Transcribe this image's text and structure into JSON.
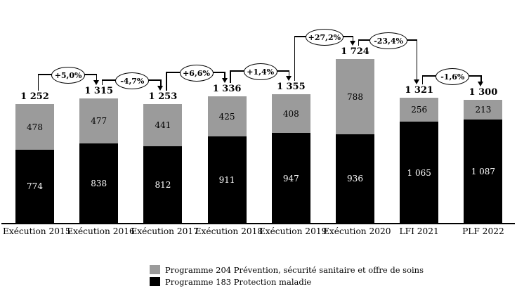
{
  "chart_data": {
    "type": "bar",
    "stacked": true,
    "grid": false,
    "categories": [
      "Exécution 2015",
      "Exécution 2016",
      "Exécution 2017",
      "Exécution 2018",
      "Exécution 2019",
      "Exécution 2020",
      "LFI 2021",
      "PLF 2022"
    ],
    "series": [
      {
        "name": "Programme 204 Prévention, sécurité sanitaire et offre de soins",
        "color": "#9b9b9b",
        "values": [
          478,
          477,
          441,
          425,
          408,
          788,
          256,
          213
        ]
      },
      {
        "name": "Programme 183 Protection maladie",
        "color": "#000000",
        "values": [
          774,
          838,
          812,
          911,
          947,
          936,
          1065,
          1087
        ]
      }
    ],
    "bars": [
      {
        "category": "Exécution 2015",
        "total": 1252,
        "total_label": "1 252",
        "p204": 478,
        "p204_label": "478",
        "p183": 774,
        "p183_label": "774"
      },
      {
        "category": "Exécution 2016",
        "total": 1315,
        "total_label": "1 315",
        "p204": 477,
        "p204_label": "477",
        "p183": 838,
        "p183_label": "838"
      },
      {
        "category": "Exécution 2017",
        "total": 1253,
        "total_label": "1 253",
        "p204": 441,
        "p204_label": "441",
        "p183": 812,
        "p183_label": "812"
      },
      {
        "category": "Exécution 2018",
        "total": 1336,
        "total_label": "1 336",
        "p204": 425,
        "p204_label": "425",
        "p183": 911,
        "p183_label": "911"
      },
      {
        "category": "Exécution 2019",
        "total": 1355,
        "total_label": "1 355",
        "p204": 408,
        "p204_label": "408",
        "p183": 947,
        "p183_label": "947"
      },
      {
        "category": "Exécution 2020",
        "total": 1724,
        "total_label": "1 724",
        "p204": 788,
        "p204_label": "788",
        "p183": 936,
        "p183_label": "936"
      },
      {
        "category": "LFI 2021",
        "total": 1321,
        "total_label": "1 321",
        "p204": 256,
        "p204_label": "256",
        "p183": 1065,
        "p183_label": "1 065"
      },
      {
        "category": "PLF 2022",
        "total": 1300,
        "total_label": "1 300",
        "p204": 213,
        "p204_label": "213",
        "p183": 1087,
        "p183_label": "1 087"
      }
    ],
    "connectors": [
      {
        "from": 0,
        "to": 1,
        "label": "+5,0%"
      },
      {
        "from": 1,
        "to": 2,
        "label": "-4,7%"
      },
      {
        "from": 2,
        "to": 3,
        "label": "+6,6%"
      },
      {
        "from": 3,
        "to": 4,
        "label": "+1,4%"
      },
      {
        "from": 4,
        "to": 5,
        "label": "+27,2%"
      },
      {
        "from": 5,
        "to": 6,
        "label": "-23,4%"
      },
      {
        "from": 6,
        "to": 7,
        "label": "-1,6%"
      }
    ],
    "legend": {
      "position": "bottom",
      "items": [
        {
          "label": "Programme 204 Prévention, sécurité sanitaire et offre de soins",
          "color": "#9b9b9b"
        },
        {
          "label": "Programme 183 Protection maladie",
          "color": "#000000"
        }
      ]
    },
    "ylim": [
      0,
      1724
    ]
  }
}
